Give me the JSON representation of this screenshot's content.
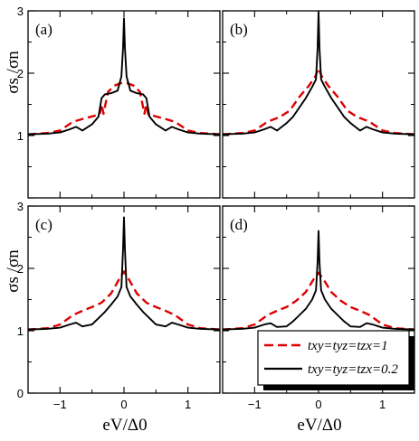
{
  "figure": {
    "ylabel": "σs /σn",
    "xlabel": "eV/Δ0"
  },
  "chart_data": [
    {
      "panel": "(a)",
      "type": "line",
      "xlim": [
        -1.5,
        1.5
      ],
      "ylim": [
        0,
        3
      ],
      "xticks": [
        -1,
        0,
        1
      ],
      "yticks": [
        0,
        1,
        2,
        3
      ],
      "series": [
        {
          "style": "dashed",
          "color": "#dd0000",
          "x": [
            -1.5,
            -1.2,
            -1.0,
            -0.8,
            -0.6,
            -0.45,
            -0.38,
            -0.35,
            -0.32,
            -0.25,
            -0.15,
            -0.05,
            0,
            0.05,
            0.15,
            0.25,
            0.32,
            0.35,
            0.38,
            0.45,
            0.6,
            0.8,
            1.0,
            1.2,
            1.5
          ],
          "y": [
            1.02,
            1.04,
            1.08,
            1.22,
            1.28,
            1.32,
            1.34,
            1.5,
            1.35,
            1.7,
            1.8,
            1.84,
            1.84,
            1.84,
            1.8,
            1.7,
            1.35,
            1.5,
            1.34,
            1.32,
            1.28,
            1.22,
            1.08,
            1.04,
            1.02
          ]
        },
        {
          "style": "solid",
          "color": "#000000",
          "x": [
            -1.5,
            -1.2,
            -1.0,
            -0.85,
            -0.75,
            -0.65,
            -0.5,
            -0.4,
            -0.35,
            -0.3,
            -0.2,
            -0.1,
            -0.04,
            -0.015,
            0,
            0.015,
            0.04,
            0.1,
            0.2,
            0.3,
            0.35,
            0.4,
            0.5,
            0.65,
            0.75,
            0.85,
            1.0,
            1.2,
            1.5
          ],
          "y": [
            1.02,
            1.03,
            1.05,
            1.1,
            1.14,
            1.08,
            1.18,
            1.3,
            1.6,
            1.66,
            1.68,
            1.72,
            1.95,
            2.4,
            2.88,
            2.4,
            1.95,
            1.72,
            1.68,
            1.66,
            1.6,
            1.3,
            1.18,
            1.08,
            1.14,
            1.1,
            1.05,
            1.03,
            1.02
          ]
        }
      ]
    },
    {
      "panel": "(b)",
      "type": "line",
      "xlim": [
        -1.5,
        1.5
      ],
      "ylim": [
        0,
        3
      ],
      "xticks": [
        -1,
        0,
        1
      ],
      "yticks": [
        0,
        1,
        2,
        3
      ],
      "series": [
        {
          "style": "dashed",
          "color": "#dd0000",
          "x": [
            -1.5,
            -1.2,
            -1.0,
            -0.8,
            -0.6,
            -0.45,
            -0.3,
            -0.15,
            -0.05,
            0,
            0.05,
            0.15,
            0.3,
            0.45,
            0.6,
            0.8,
            1.0,
            1.2,
            1.5
          ],
          "y": [
            1.02,
            1.04,
            1.08,
            1.22,
            1.3,
            1.4,
            1.62,
            1.8,
            1.95,
            2.08,
            1.95,
            1.8,
            1.62,
            1.4,
            1.3,
            1.22,
            1.08,
            1.04,
            1.02
          ]
        },
        {
          "style": "solid",
          "color": "#000000",
          "x": [
            -1.5,
            -1.2,
            -1.0,
            -0.85,
            -0.75,
            -0.65,
            -0.5,
            -0.4,
            -0.3,
            -0.2,
            -0.1,
            -0.04,
            -0.015,
            0,
            0.015,
            0.04,
            0.1,
            0.2,
            0.3,
            0.4,
            0.5,
            0.65,
            0.75,
            0.85,
            1.0,
            1.2,
            1.5
          ],
          "y": [
            1.02,
            1.03,
            1.05,
            1.1,
            1.14,
            1.08,
            1.2,
            1.3,
            1.45,
            1.6,
            1.78,
            1.9,
            2.4,
            2.98,
            2.4,
            1.9,
            1.78,
            1.6,
            1.45,
            1.3,
            1.2,
            1.08,
            1.14,
            1.1,
            1.05,
            1.03,
            1.02
          ]
        }
      ]
    },
    {
      "panel": "(c)",
      "type": "line",
      "xlim": [
        -1.5,
        1.5
      ],
      "ylim": [
        0,
        3
      ],
      "xticks": [
        -1,
        0,
        1
      ],
      "yticks": [
        0,
        1,
        2,
        3
      ],
      "series": [
        {
          "style": "dashed",
          "color": "#dd0000",
          "x": [
            -1.5,
            -1.2,
            -1.0,
            -0.8,
            -0.65,
            -0.5,
            -0.35,
            -0.2,
            -0.08,
            0,
            0.08,
            0.2,
            0.35,
            0.5,
            0.65,
            0.8,
            1.0,
            1.2,
            1.5
          ],
          "y": [
            1.02,
            1.04,
            1.1,
            1.25,
            1.32,
            1.38,
            1.45,
            1.6,
            1.82,
            1.95,
            1.82,
            1.6,
            1.45,
            1.38,
            1.32,
            1.25,
            1.1,
            1.04,
            1.02
          ]
        },
        {
          "style": "solid",
          "color": "#000000",
          "x": [
            -1.5,
            -1.2,
            -1.0,
            -0.85,
            -0.75,
            -0.65,
            -0.5,
            -0.4,
            -0.3,
            -0.2,
            -0.1,
            -0.04,
            -0.015,
            0,
            0.015,
            0.04,
            0.1,
            0.2,
            0.3,
            0.4,
            0.5,
            0.65,
            0.75,
            0.85,
            1.0,
            1.2,
            1.5
          ],
          "y": [
            1.02,
            1.03,
            1.05,
            1.1,
            1.13,
            1.07,
            1.1,
            1.2,
            1.3,
            1.42,
            1.55,
            1.7,
            2.3,
            2.82,
            2.3,
            1.7,
            1.55,
            1.42,
            1.3,
            1.2,
            1.1,
            1.07,
            1.13,
            1.1,
            1.05,
            1.03,
            1.02
          ]
        }
      ]
    },
    {
      "panel": "(d)",
      "type": "line",
      "xlim": [
        -1.5,
        1.5
      ],
      "ylim": [
        0,
        3
      ],
      "xticks": [
        -1,
        0,
        1
      ],
      "yticks": [
        0,
        1,
        2,
        3
      ],
      "series": [
        {
          "style": "dashed",
          "color": "#dd0000",
          "x": [
            -1.5,
            -1.2,
            -1.0,
            -0.8,
            -0.65,
            -0.5,
            -0.35,
            -0.2,
            -0.08,
            0,
            0.08,
            0.2,
            0.35,
            0.5,
            0.65,
            0.8,
            1.0,
            1.2,
            1.5
          ],
          "y": [
            1.02,
            1.04,
            1.1,
            1.25,
            1.32,
            1.38,
            1.48,
            1.62,
            1.82,
            1.93,
            1.82,
            1.62,
            1.48,
            1.38,
            1.32,
            1.25,
            1.1,
            1.04,
            1.02
          ]
        },
        {
          "style": "solid",
          "color": "#000000",
          "x": [
            -1.5,
            -1.2,
            -1.0,
            -0.85,
            -0.75,
            -0.65,
            -0.5,
            -0.4,
            -0.3,
            -0.2,
            -0.1,
            -0.04,
            -0.015,
            0,
            0.015,
            0.04,
            0.1,
            0.2,
            0.3,
            0.4,
            0.5,
            0.65,
            0.75,
            0.85,
            1.0,
            1.2,
            1.5
          ],
          "y": [
            1.02,
            1.03,
            1.05,
            1.1,
            1.12,
            1.06,
            1.07,
            1.15,
            1.25,
            1.35,
            1.5,
            1.65,
            2.1,
            2.6,
            2.1,
            1.65,
            1.5,
            1.35,
            1.25,
            1.15,
            1.07,
            1.06,
            1.12,
            1.1,
            1.05,
            1.03,
            1.02
          ]
        }
      ]
    }
  ],
  "legend": {
    "placement": "bottom-right of panel (d)",
    "entries": [
      {
        "label": "txy=tyz=tzx=1",
        "style": "dashed",
        "color": "#dd0000"
      },
      {
        "label": "txy=tyz=tzx=0.2",
        "style": "solid",
        "color": "#000000"
      }
    ]
  }
}
